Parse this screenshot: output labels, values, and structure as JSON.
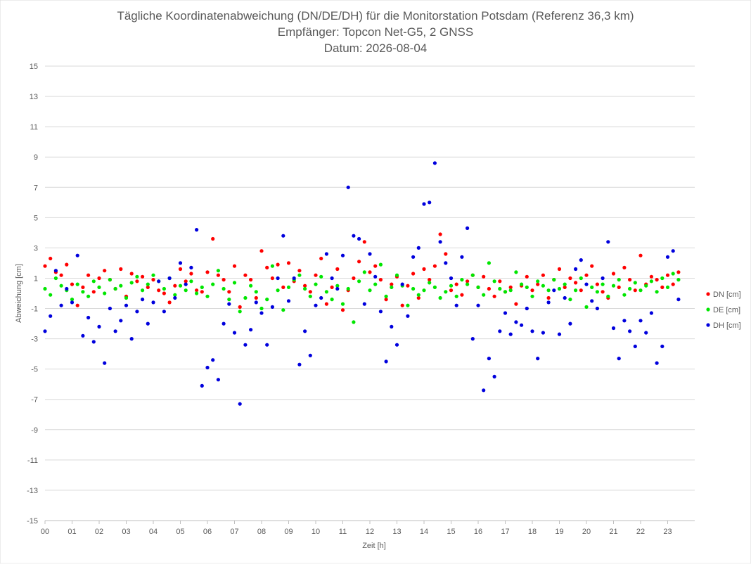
{
  "title_lines": [
    "Tägliche Koordinatenabweichung (DN/DE/DH) für die Monitorstation Potsdam (Referenz 36,3 km)",
    "Empfänger: Topcon Net-G5, 2 GNSS",
    "Datum: 2026-08-04"
  ],
  "chart_data": {
    "type": "scatter",
    "title": "Tägliche Koordinatenabweichung (DN/DE/DH) für die Monitorstation Potsdam (Referenz 36,3 km)",
    "subtitle": "Empfänger: Topcon Net-G5, 2 GNSS — Datum: 2026-08-04",
    "xlabel": "Zeit [h]",
    "ylabel": "Abweichung [cm]",
    "xlim": [
      0,
      24
    ],
    "ylim": [
      -15,
      15
    ],
    "x_tick_labels": [
      "00",
      "01",
      "02",
      "03",
      "04",
      "05",
      "06",
      "07",
      "08",
      "09",
      "10",
      "11",
      "12",
      "13",
      "14",
      "15",
      "16",
      "17",
      "18",
      "19",
      "20",
      "21",
      "22",
      "23"
    ],
    "y_ticks": [
      -15,
      -13,
      -11,
      -9,
      -7,
      -5,
      -3,
      -1,
      1,
      3,
      5,
      7,
      9,
      11,
      13,
      15
    ],
    "grid": "horizontal",
    "legend_position": "right",
    "series": [
      {
        "name": "DN [cm]",
        "color": "#ff0000",
        "x": [
          0.0,
          0.2,
          0.4,
          0.6,
          0.8,
          1.0,
          1.2,
          1.4,
          1.6,
          1.8,
          2.0,
          2.2,
          2.4,
          2.6,
          2.8,
          3.0,
          3.2,
          3.4,
          3.6,
          3.8,
          4.0,
          4.2,
          4.4,
          4.6,
          4.8,
          5.0,
          5.2,
          5.4,
          5.6,
          5.8,
          6.0,
          6.2,
          6.4,
          6.6,
          6.8,
          7.0,
          7.2,
          7.4,
          7.6,
          7.8,
          8.0,
          8.2,
          8.4,
          8.6,
          8.8,
          9.0,
          9.2,
          9.4,
          9.6,
          9.8,
          10.0,
          10.2,
          10.4,
          10.6,
          10.8,
          11.0,
          11.2,
          11.4,
          11.6,
          11.8,
          12.0,
          12.2,
          12.4,
          12.6,
          12.8,
          13.0,
          13.2,
          13.4,
          13.6,
          13.8,
          14.0,
          14.2,
          14.4,
          14.6,
          14.8,
          15.0,
          15.2,
          15.4,
          15.6,
          15.8,
          16.0,
          16.2,
          16.4,
          16.6,
          16.8,
          17.0,
          17.2,
          17.4,
          17.6,
          17.8,
          18.0,
          18.2,
          18.4,
          18.6,
          18.8,
          19.0,
          19.2,
          19.4,
          19.6,
          19.8,
          20.0,
          20.2,
          20.4,
          20.6,
          20.8,
          21.0,
          21.2,
          21.4,
          21.6,
          21.8,
          22.0,
          22.2,
          22.4,
          22.6,
          22.8,
          23.0,
          23.2,
          23.4
        ],
        "y": [
          1.8,
          2.3,
          1.4,
          1.2,
          1.9,
          0.6,
          -0.8,
          0.4,
          1.2,
          0.1,
          1.0,
          1.5,
          0.9,
          0.3,
          1.6,
          -0.2,
          1.3,
          0.8,
          1.1,
          0.4,
          0.9,
          0.2,
          0.0,
          -0.6,
          0.5,
          1.6,
          0.8,
          1.3,
          0.2,
          0.1,
          1.4,
          3.6,
          1.2,
          0.9,
          0.1,
          1.8,
          -0.9,
          1.2,
          0.9,
          -0.3,
          2.8,
          1.7,
          1.0,
          1.9,
          0.4,
          2.0,
          0.8,
          1.5,
          0.5,
          0.1,
          1.2,
          2.3,
          -0.7,
          0.4,
          1.6,
          -1.1,
          0.2,
          1.0,
          2.1,
          3.4,
          1.4,
          1.8,
          0.9,
          -0.4,
          0.6,
          1.1,
          -0.8,
          0.5,
          1.3,
          -0.3,
          1.6,
          0.9,
          1.8,
          3.9,
          2.6,
          0.2,
          0.6,
          -0.1,
          0.8,
          1.2,
          0.4,
          1.1,
          0.3,
          -0.2,
          0.8,
          0.1,
          0.4,
          -0.7,
          0.5,
          1.1,
          0.2,
          0.6,
          1.2,
          -0.3,
          0.9,
          1.6,
          0.4,
          1.0,
          0.7,
          0.2,
          1.2,
          1.8,
          0.6,
          0.1,
          -0.3,
          1.3,
          0.4,
          1.7,
          0.9,
          0.2,
          2.5,
          0.6,
          1.1,
          0.9,
          0.4,
          1.2,
          0.6,
          1.4
        ]
      },
      {
        "name": "DE [cm]",
        "color": "#00e600",
        "x": [
          0.0,
          0.2,
          0.4,
          0.6,
          0.8,
          1.0,
          1.2,
          1.4,
          1.6,
          1.8,
          2.0,
          2.2,
          2.4,
          2.6,
          2.8,
          3.0,
          3.2,
          3.4,
          3.6,
          3.8,
          4.0,
          4.2,
          4.4,
          4.6,
          4.8,
          5.0,
          5.2,
          5.4,
          5.6,
          5.8,
          6.0,
          6.2,
          6.4,
          6.6,
          6.8,
          7.0,
          7.2,
          7.4,
          7.6,
          7.8,
          8.0,
          8.2,
          8.4,
          8.6,
          8.8,
          9.0,
          9.2,
          9.4,
          9.6,
          9.8,
          10.0,
          10.2,
          10.4,
          10.6,
          10.8,
          11.0,
          11.2,
          11.4,
          11.6,
          11.8,
          12.0,
          12.2,
          12.4,
          12.6,
          12.8,
          13.0,
          13.2,
          13.4,
          13.6,
          13.8,
          14.0,
          14.2,
          14.4,
          14.6,
          14.8,
          15.0,
          15.2,
          15.4,
          15.6,
          15.8,
          16.0,
          16.2,
          16.4,
          16.6,
          16.8,
          17.0,
          17.2,
          17.4,
          17.6,
          17.8,
          18.0,
          18.2,
          18.4,
          18.6,
          18.8,
          19.0,
          19.2,
          19.4,
          19.6,
          19.8,
          20.0,
          20.2,
          20.4,
          20.6,
          20.8,
          21.0,
          21.2,
          21.4,
          21.6,
          21.8,
          22.0,
          22.2,
          22.4,
          22.6,
          22.8,
          23.0,
          23.2,
          23.4
        ],
        "y": [
          0.3,
          -0.1,
          1.0,
          0.5,
          0.2,
          -0.4,
          0.6,
          0.1,
          -0.2,
          0.8,
          0.4,
          0.0,
          0.9,
          0.3,
          0.5,
          -0.3,
          0.7,
          1.1,
          0.2,
          0.6,
          1.2,
          0.8,
          0.3,
          1.0,
          -0.1,
          0.5,
          0.2,
          0.8,
          0.0,
          0.4,
          -0.2,
          0.6,
          1.5,
          0.3,
          -0.4,
          0.7,
          -1.2,
          -0.3,
          0.5,
          0.1,
          -1.0,
          -0.4,
          1.8,
          0.2,
          -1.1,
          0.4,
          0.9,
          1.2,
          0.3,
          -0.2,
          0.6,
          1.1,
          0.1,
          -0.4,
          0.5,
          -0.7,
          0.3,
          -1.9,
          0.8,
          1.4,
          0.2,
          0.6,
          1.9,
          -0.2,
          0.4,
          1.2,
          0.5,
          -0.8,
          0.3,
          -0.1,
          0.2,
          0.7,
          0.4,
          -0.3,
          0.1,
          0.5,
          -0.2,
          0.9,
          0.6,
          1.2,
          0.4,
          -0.1,
          2.0,
          0.8,
          0.3,
          0.1,
          0.2,
          1.4,
          0.6,
          0.4,
          -0.2,
          0.8,
          0.5,
          0.2,
          0.9,
          0.3,
          0.6,
          -0.4,
          0.2,
          1.0,
          -0.9,
          0.4,
          0.1,
          0.6,
          -0.2,
          0.5,
          0.9,
          -0.1,
          0.3,
          0.7,
          0.2,
          0.5,
          0.8,
          0.1,
          1.0,
          0.4,
          1.3,
          0.9
        ]
      },
      {
        "name": "DH [cm]",
        "color": "#0000dd",
        "x": [
          0.0,
          0.2,
          0.4,
          0.6,
          0.8,
          1.0,
          1.2,
          1.4,
          1.6,
          1.8,
          2.0,
          2.2,
          2.4,
          2.6,
          2.8,
          3.0,
          3.2,
          3.4,
          3.6,
          3.8,
          4.0,
          4.2,
          4.4,
          4.6,
          4.8,
          5.0,
          5.2,
          5.4,
          5.6,
          5.8,
          6.0,
          6.2,
          6.4,
          6.6,
          6.8,
          7.0,
          7.2,
          7.4,
          7.6,
          7.8,
          8.0,
          8.2,
          8.4,
          8.6,
          8.8,
          9.0,
          9.2,
          9.4,
          9.6,
          9.8,
          10.0,
          10.2,
          10.4,
          10.6,
          10.8,
          11.0,
          11.2,
          11.4,
          11.6,
          11.8,
          12.0,
          12.2,
          12.4,
          12.6,
          12.8,
          13.0,
          13.2,
          13.4,
          13.6,
          13.8,
          14.0,
          14.2,
          14.4,
          14.6,
          14.8,
          15.0,
          15.2,
          15.4,
          15.6,
          15.8,
          16.0,
          16.2,
          16.4,
          16.6,
          16.8,
          17.0,
          17.2,
          17.4,
          17.6,
          17.8,
          18.0,
          18.2,
          18.4,
          18.6,
          18.8,
          19.0,
          19.2,
          19.4,
          19.6,
          19.8,
          20.0,
          20.2,
          20.4,
          20.6,
          20.8,
          21.0,
          21.2,
          21.4,
          21.6,
          21.8,
          22.0,
          22.2,
          22.4,
          22.6,
          22.8,
          23.0,
          23.2,
          23.4
        ],
        "y": [
          -2.5,
          -1.5,
          1.5,
          -0.8,
          0.3,
          -0.6,
          2.5,
          -2.8,
          -1.6,
          -3.2,
          -2.2,
          -4.6,
          -1.0,
          -2.5,
          -1.8,
          -0.8,
          -3.0,
          -1.2,
          -0.4,
          -2.0,
          -0.6,
          0.8,
          -1.2,
          1.0,
          -0.3,
          2.0,
          0.6,
          1.7,
          4.2,
          -6.1,
          -4.9,
          -4.4,
          -5.7,
          -2.0,
          -0.7,
          -2.6,
          -7.3,
          -3.4,
          -2.4,
          -0.6,
          -1.3,
          -3.4,
          -0.9,
          1.0,
          3.8,
          -0.5,
          1.0,
          -4.7,
          -2.5,
          -4.1,
          -0.8,
          -0.3,
          2.6,
          1.0,
          0.3,
          2.5,
          7.0,
          3.8,
          3.6,
          -0.7,
          2.6,
          1.1,
          -1.2,
          -4.5,
          -2.2,
          -3.4,
          0.6,
          -1.5,
          2.4,
          3.0,
          5.9,
          6.0,
          8.6,
          3.4,
          2.0,
          1.0,
          -0.8,
          2.4,
          4.3,
          -3.0,
          -0.8,
          -6.4,
          -4.3,
          -5.5,
          -2.5,
          -1.3,
          -2.7,
          -1.9,
          -2.1,
          -1.0,
          -2.5,
          -4.3,
          -2.6,
          -0.6,
          0.2,
          -2.7,
          -0.3,
          -2.0,
          1.6,
          2.2,
          0.6,
          -0.5,
          -1.0,
          1.0,
          3.4,
          -2.3,
          -4.3,
          -1.8,
          -2.5,
          -3.5,
          -1.8,
          -2.6,
          -1.3,
          -4.6,
          -3.5,
          2.4,
          2.8,
          -0.4
        ]
      }
    ]
  }
}
